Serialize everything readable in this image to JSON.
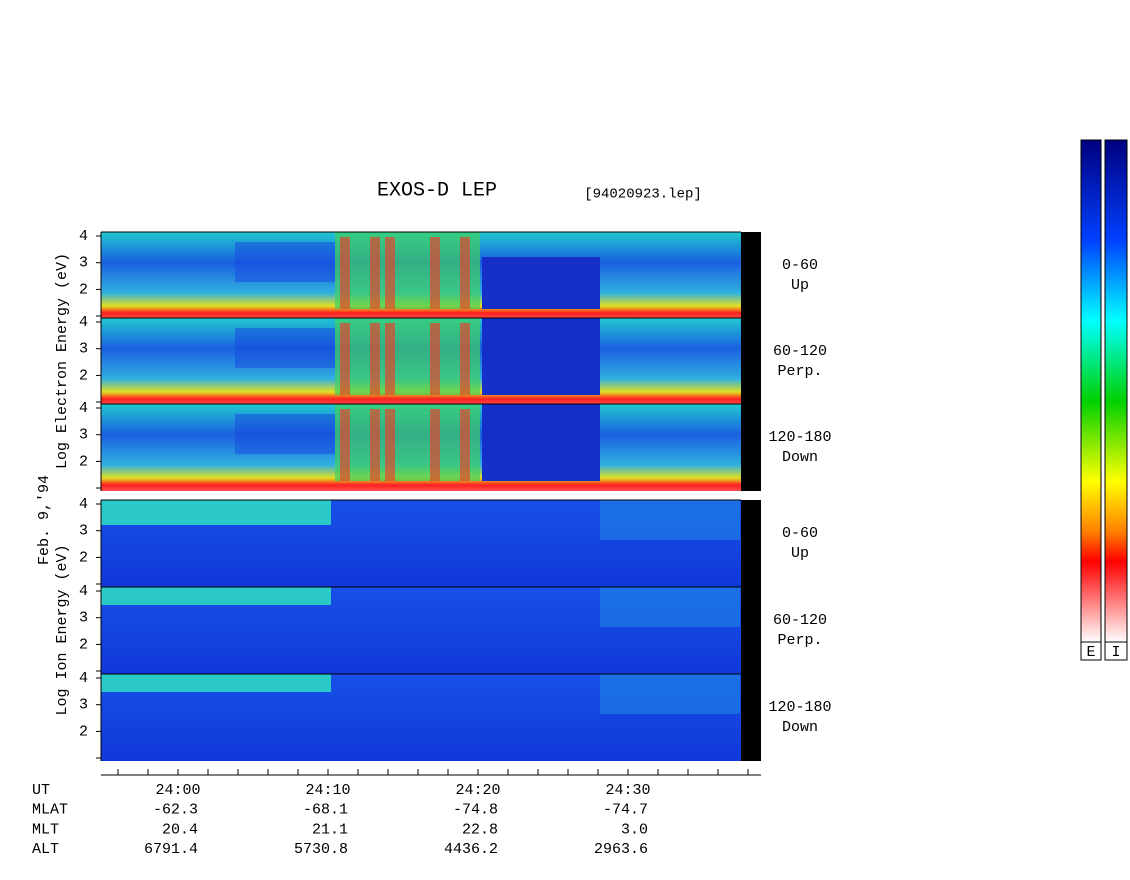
{
  "header": {
    "title": "EXOS-D LEP",
    "file": "[94020923.lep]"
  },
  "date": "Feb. 9,'94",
  "electron": {
    "axis_label": "Log Electron Energy (eV)",
    "yticks": [
      "4",
      "3",
      "2"
    ],
    "panels": [
      {
        "angle": "0-60",
        "direction": "Up"
      },
      {
        "angle": "60-120",
        "direction": "Perp."
      },
      {
        "angle": "120-180",
        "direction": "Down"
      }
    ]
  },
  "ion": {
    "axis_label": "Log Ion Energy (eV)",
    "yticks": [
      "4",
      "3",
      "2"
    ],
    "panels": [
      {
        "angle": "0-60",
        "direction": "Up"
      },
      {
        "angle": "60-120",
        "direction": "Perp."
      },
      {
        "angle": "120-180",
        "direction": "Down"
      }
    ]
  },
  "ephemeris": [
    {
      "label": "UT",
      "values": [
        "24:00",
        "24:10",
        "24:20",
        "24:30"
      ]
    },
    {
      "label": "MLAT",
      "values": [
        "-62.3",
        "-68.1",
        "-74.8",
        "-74.7"
      ]
    },
    {
      "label": "MLT",
      "values": [
        "20.4",
        "21.1",
        "22.8",
        "3.0"
      ]
    },
    {
      "label": "ALT",
      "values": [
        "6791.4",
        "5730.8",
        "4436.2",
        "2963.6"
      ]
    }
  ],
  "colorbar": {
    "labels": [
      "E",
      "I"
    ]
  }
}
